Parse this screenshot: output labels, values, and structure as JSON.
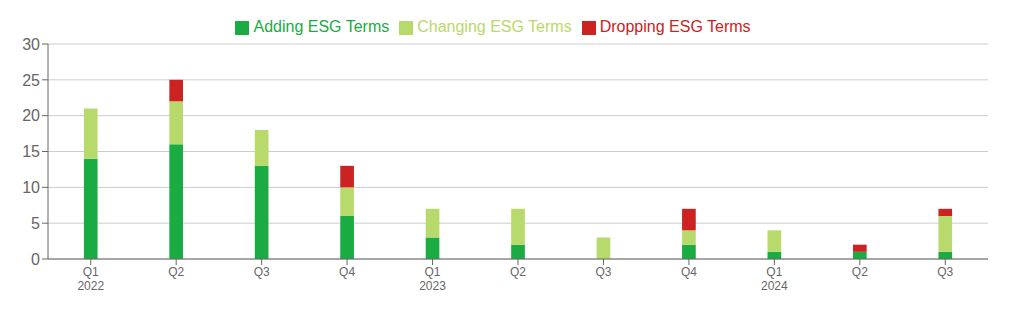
{
  "chart_data": {
    "type": "bar",
    "stacked": true,
    "categories": [
      "Q1\n2022",
      "Q2",
      "Q3",
      "Q4",
      "Q1\n2023",
      "Q2",
      "Q3",
      "Q4",
      "Q1\n2024",
      "Q2",
      "Q3"
    ],
    "series": [
      {
        "name": "Adding ESG Terms",
        "color": "#1aab42",
        "values": [
          14,
          16,
          13,
          6,
          3,
          2,
          0,
          2,
          1,
          1,
          1
        ]
      },
      {
        "name": "Changing ESG Terms",
        "color": "#b8d96b",
        "values": [
          7,
          6,
          5,
          4,
          4,
          5,
          3,
          2,
          3,
          0,
          5
        ]
      },
      {
        "name": "Dropping ESG Terms",
        "color": "#cc2222",
        "values": [
          0,
          3,
          0,
          3,
          0,
          0,
          0,
          3,
          0,
          1,
          1
        ]
      }
    ],
    "ylim": [
      0,
      30
    ],
    "yticks": [
      0,
      5,
      10,
      15,
      20,
      25,
      30
    ],
    "grid": true,
    "legend": "top"
  }
}
